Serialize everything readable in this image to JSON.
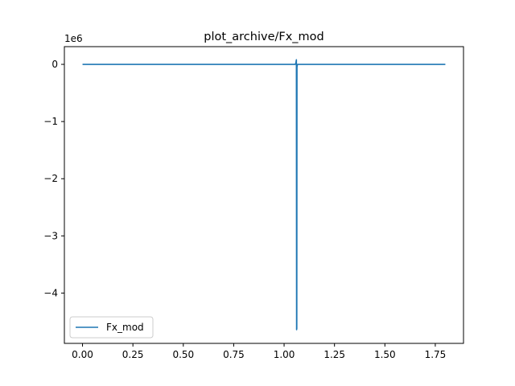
{
  "chart_data": {
    "type": "line",
    "title": "plot_archive/Fx_mod",
    "xlabel": "",
    "ylabel": "",
    "y_offset_label": "1e6",
    "xlim": [
      -0.09,
      1.89
    ],
    "ylim": [
      -4.88,
      0.31
    ],
    "x_ticks": [
      0.0,
      0.25,
      0.5,
      0.75,
      1.0,
      1.25,
      1.5,
      1.75
    ],
    "x_tick_labels": [
      "0.00",
      "0.25",
      "0.50",
      "0.75",
      "1.00",
      "1.25",
      "1.50",
      "1.75"
    ],
    "y_ticks": [
      0,
      -1,
      -2,
      -3,
      -4
    ],
    "y_tick_labels": [
      "0",
      "−1",
      "−2",
      "−3",
      "−4"
    ],
    "grid": false,
    "legend_position": "lower-left",
    "series": [
      {
        "name": "Fx_mod",
        "color": "#1f77b4",
        "x": [
          0.0,
          1.055,
          1.058,
          1.061,
          1.062,
          1.063,
          1.064,
          1.066,
          1.07,
          1.8
        ],
        "y": [
          0.0,
          0.0,
          0.02,
          0.08,
          -4.64,
          -4.62,
          -0.05,
          0.0,
          0.0,
          0.0
        ]
      }
    ]
  }
}
